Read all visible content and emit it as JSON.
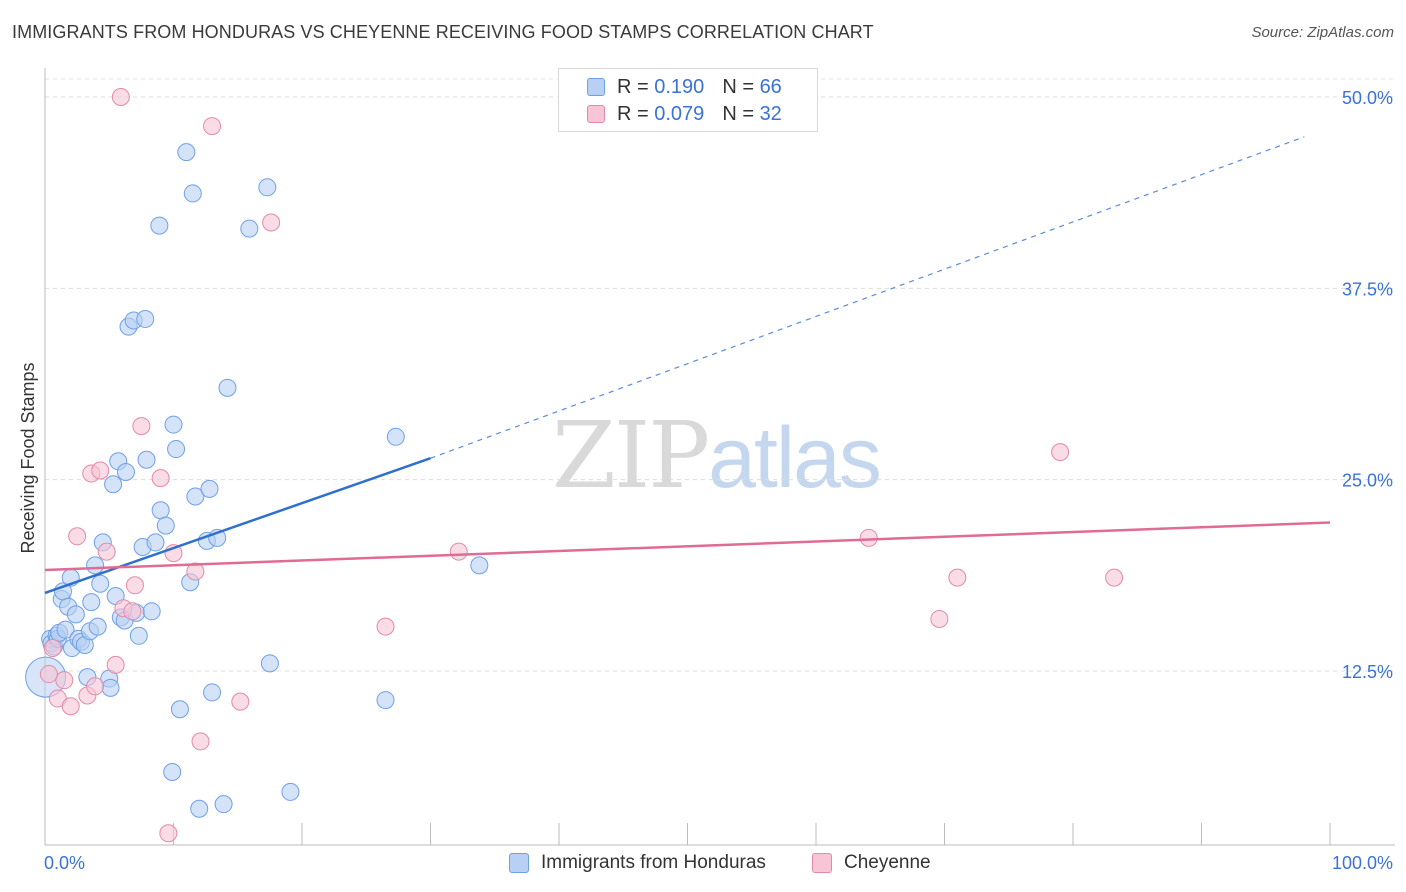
{
  "header": {
    "title": "IMMIGRANTS FROM HONDURAS VS CHEYENNE RECEIVING FOOD STAMPS CORRELATION CHART",
    "source": "Source: ZipAtlas.com"
  },
  "legend_top": {
    "rows": [
      {
        "r_label": "R =",
        "r_value": "0.190",
        "n_label": "N =",
        "n_value": "66"
      },
      {
        "r_label": "R =",
        "r_value": "0.079",
        "n_label": "N =",
        "n_value": "32"
      }
    ]
  },
  "watermark": {
    "zip": "ZIP",
    "atlas": "atlas"
  },
  "chart_data": {
    "type": "scatter",
    "title": "IMMIGRANTS FROM HONDURAS VS CHEYENNE RECEIVING FOOD STAMPS CORRELATION CHART",
    "xlabel": "",
    "ylabel": "Receiving Food Stamps",
    "xlim": [
      0,
      100
    ],
    "ylim": [
      0,
      52
    ],
    "x_tick_labels": [
      "0.0%",
      "100.0%"
    ],
    "y_ticks": [
      12.5,
      25.0,
      37.5,
      50.0
    ],
    "y_tick_labels": [
      "12.5%",
      "25.0%",
      "37.5%",
      "50.0%"
    ],
    "grid": true,
    "legend_position": "bottom",
    "series": [
      {
        "name": "Immigrants from Honduras",
        "color": "#6fa0e6",
        "fill": "#b8d0f3",
        "points": [
          [
            0.4,
            14.6
          ],
          [
            0.5,
            14.3
          ],
          [
            0.7,
            14.1
          ],
          [
            0.9,
            14.8
          ],
          [
            1.0,
            14.6
          ],
          [
            1.1,
            15.0
          ],
          [
            1.3,
            17.2
          ],
          [
            1.4,
            17.7
          ],
          [
            1.6,
            15.2
          ],
          [
            1.8,
            16.7
          ],
          [
            2.0,
            18.6
          ],
          [
            2.1,
            14.0
          ],
          [
            2.4,
            16.2
          ],
          [
            2.6,
            14.6
          ],
          [
            2.8,
            14.4
          ],
          [
            3.1,
            14.2
          ],
          [
            3.3,
            12.1
          ],
          [
            3.5,
            15.1
          ],
          [
            3.6,
            17.0
          ],
          [
            3.9,
            19.4
          ],
          [
            4.1,
            15.4
          ],
          [
            4.3,
            18.2
          ],
          [
            4.5,
            20.9
          ],
          [
            5.0,
            12.0
          ],
          [
            5.1,
            11.4
          ],
          [
            5.3,
            24.7
          ],
          [
            5.5,
            17.4
          ],
          [
            5.7,
            26.2
          ],
          [
            5.9,
            16.0
          ],
          [
            6.2,
            15.8
          ],
          [
            6.3,
            25.5
          ],
          [
            6.5,
            35.0
          ],
          [
            6.9,
            35.4
          ],
          [
            7.1,
            16.3
          ],
          [
            7.3,
            14.8
          ],
          [
            7.6,
            20.6
          ],
          [
            7.8,
            35.5
          ],
          [
            7.9,
            26.3
          ],
          [
            8.3,
            16.4
          ],
          [
            8.6,
            20.9
          ],
          [
            8.9,
            41.6
          ],
          [
            9.0,
            23.0
          ],
          [
            9.4,
            22.0
          ],
          [
            9.9,
            5.9
          ],
          [
            10.0,
            28.6
          ],
          [
            10.2,
            27.0
          ],
          [
            10.5,
            10.0
          ],
          [
            11.0,
            46.4
          ],
          [
            11.3,
            18.3
          ],
          [
            11.5,
            43.7
          ],
          [
            11.7,
            23.9
          ],
          [
            12.0,
            3.5
          ],
          [
            12.6,
            21.0
          ],
          [
            12.8,
            24.4
          ],
          [
            13.0,
            11.1
          ],
          [
            13.4,
            21.2
          ],
          [
            13.9,
            3.8
          ],
          [
            14.2,
            31.0
          ],
          [
            15.9,
            41.4
          ],
          [
            17.3,
            44.1
          ],
          [
            17.5,
            13.0
          ],
          [
            19.1,
            4.6
          ],
          [
            26.5,
            10.6
          ],
          [
            27.3,
            27.8
          ],
          [
            33.8,
            19.4
          ],
          [
            0.05,
            12.1
          ]
        ]
      },
      {
        "name": "Cheyenne",
        "color": "#e48aa7",
        "fill": "#f7c5d5",
        "points": [
          [
            0.6,
            14.0
          ],
          [
            1.0,
            10.7
          ],
          [
            1.5,
            11.9
          ],
          [
            2.0,
            10.2
          ],
          [
            2.5,
            21.3
          ],
          [
            3.3,
            10.9
          ],
          [
            3.6,
            25.4
          ],
          [
            3.9,
            11.5
          ],
          [
            4.3,
            25.6
          ],
          [
            4.8,
            20.3
          ],
          [
            5.5,
            12.9
          ],
          [
            6.1,
            16.6
          ],
          [
            6.8,
            16.4
          ],
          [
            7.0,
            18.1
          ],
          [
            7.5,
            28.5
          ],
          [
            9.0,
            25.1
          ],
          [
            9.6,
            1.9
          ],
          [
            10.0,
            20.2
          ],
          [
            11.7,
            19.0
          ],
          [
            12.1,
            7.9
          ],
          [
            13.0,
            48.1
          ],
          [
            15.2,
            10.5
          ],
          [
            17.6,
            41.8
          ],
          [
            26.5,
            15.4
          ],
          [
            32.2,
            20.3
          ],
          [
            64.1,
            21.2
          ],
          [
            69.6,
            15.9
          ],
          [
            71.0,
            18.6
          ],
          [
            79.0,
            26.8
          ],
          [
            83.2,
            18.6
          ],
          [
            0.3,
            12.3
          ],
          [
            5.9,
            50.0
          ]
        ]
      }
    ],
    "trendlines": [
      {
        "series": "Immigrants from Honduras",
        "color": "#2f6fd0",
        "solid_from": [
          0,
          17.6
        ],
        "solid_to": [
          30,
          26.4
        ],
        "dashed_to": [
          98,
          47.4
        ]
      },
      {
        "series": "Cheyenne",
        "color": "#e06b95",
        "solid_from": [
          0,
          19.1
        ],
        "solid_to": [
          100,
          22.2
        ]
      }
    ]
  },
  "legend_bottom": {
    "items": [
      {
        "label": "Immigrants from Honduras"
      },
      {
        "label": "Cheyenne"
      }
    ]
  }
}
